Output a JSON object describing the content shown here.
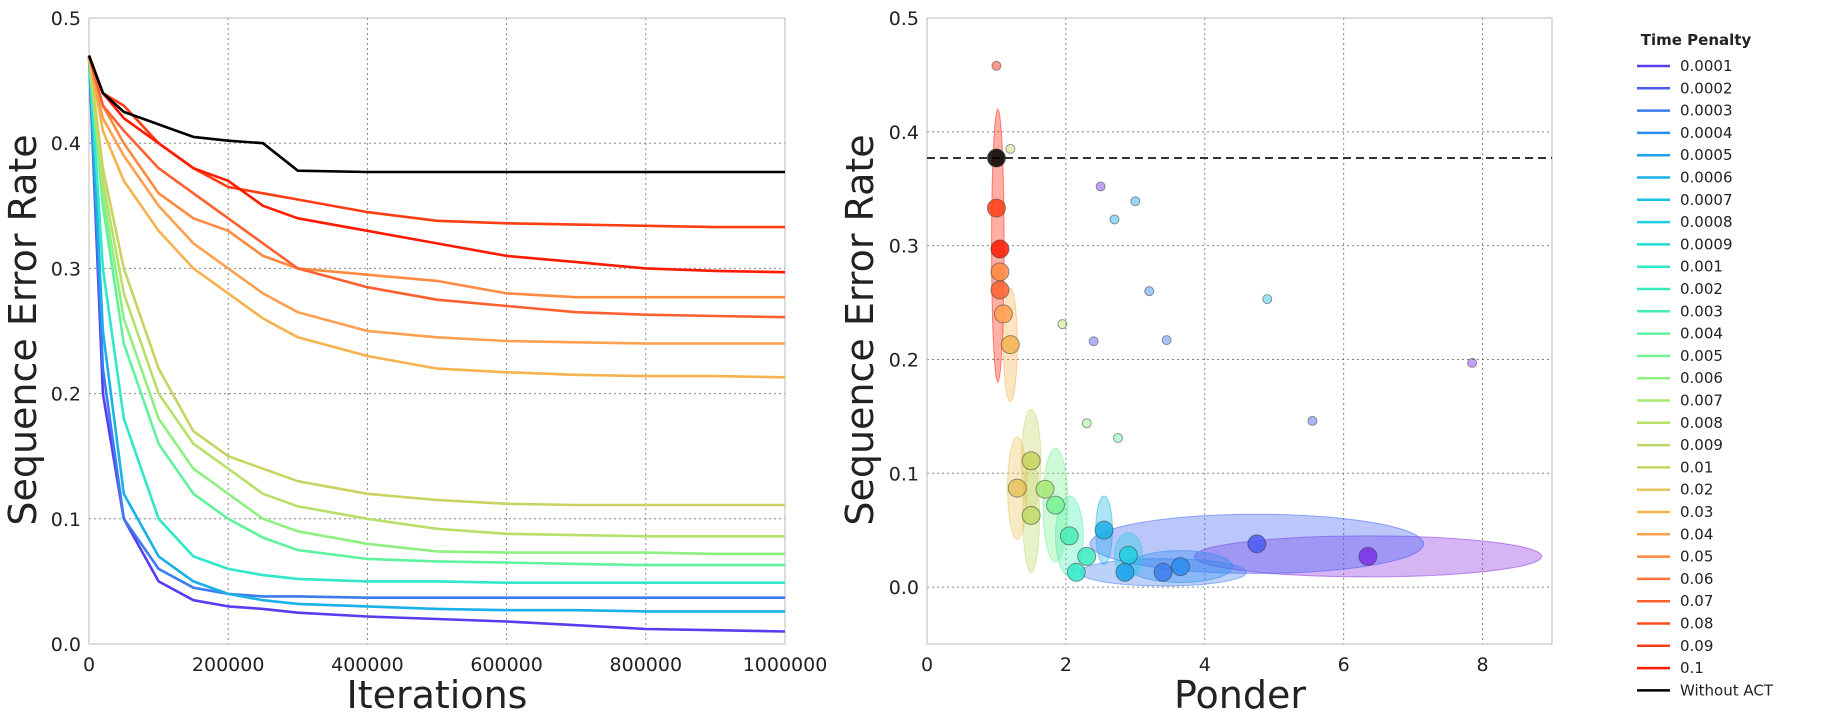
{
  "chart_data": [
    {
      "type": "line",
      "title": "",
      "xlabel": "Iterations",
      "ylabel": "Sequence Error Rate",
      "xlim": [
        0,
        1000000
      ],
      "ylim": [
        0.0,
        0.5
      ],
      "x_ticks": [
        "0",
        "200000",
        "400000",
        "600000",
        "800000",
        "1000000"
      ],
      "y_ticks": [
        "0.0",
        "0.1",
        "0.2",
        "0.3",
        "0.4",
        "0.5"
      ],
      "grid": true,
      "x": [
        0,
        20000,
        50000,
        100000,
        150000,
        200000,
        250000,
        300000,
        400000,
        500000,
        600000,
        700000,
        800000,
        900000,
        1000000
      ],
      "series": [
        {
          "name": "Without ACT",
          "color": "#000000",
          "values": [
            0.47,
            0.44,
            0.425,
            0.415,
            0.405,
            0.402,
            0.4,
            0.378,
            0.377,
            0.377,
            0.377,
            0.377,
            0.377,
            0.377,
            0.377
          ]
        },
        {
          "name": "0.1",
          "color": "#ff1a00",
          "values": [
            0.47,
            0.44,
            0.42,
            0.4,
            0.38,
            0.37,
            0.35,
            0.34,
            0.33,
            0.32,
            0.31,
            0.305,
            0.3,
            0.298,
            0.297
          ]
        },
        {
          "name": "0.09",
          "color": "#ff3d14",
          "values": [
            0.47,
            0.44,
            0.43,
            0.4,
            0.38,
            0.365,
            0.36,
            0.355,
            0.345,
            0.338,
            0.336,
            0.335,
            0.334,
            0.333,
            0.333
          ]
        },
        {
          "name": "0.07",
          "color": "#ff6030",
          "values": [
            0.47,
            0.43,
            0.41,
            0.38,
            0.36,
            0.34,
            0.32,
            0.3,
            0.285,
            0.275,
            0.27,
            0.265,
            0.263,
            0.262,
            0.261
          ]
        },
        {
          "name": "0.05",
          "color": "#ff8a42",
          "values": [
            0.47,
            0.43,
            0.4,
            0.36,
            0.34,
            0.33,
            0.31,
            0.3,
            0.295,
            0.29,
            0.28,
            0.277,
            0.277,
            0.277,
            0.277
          ]
        },
        {
          "name": "0.04",
          "color": "#ffa050",
          "values": [
            0.47,
            0.42,
            0.39,
            0.35,
            0.32,
            0.3,
            0.28,
            0.265,
            0.25,
            0.245,
            0.242,
            0.241,
            0.24,
            0.24,
            0.24
          ]
        },
        {
          "name": "0.03",
          "color": "#f5b24e",
          "values": [
            0.47,
            0.41,
            0.37,
            0.33,
            0.3,
            0.28,
            0.26,
            0.245,
            0.23,
            0.22,
            0.217,
            0.215,
            0.214,
            0.214,
            0.213
          ]
        },
        {
          "name": "0.01",
          "color": "#c9d362",
          "values": [
            0.47,
            0.38,
            0.3,
            0.22,
            0.17,
            0.15,
            0.14,
            0.13,
            0.12,
            0.115,
            0.112,
            0.111,
            0.111,
            0.111,
            0.111
          ]
        },
        {
          "name": "0.008",
          "color": "#b7e06a",
          "values": [
            0.47,
            0.37,
            0.28,
            0.2,
            0.16,
            0.14,
            0.12,
            0.11,
            0.1,
            0.092,
            0.088,
            0.087,
            0.086,
            0.086,
            0.086
          ]
        },
        {
          "name": "0.006",
          "color": "#8ef080",
          "values": [
            0.47,
            0.36,
            0.26,
            0.18,
            0.14,
            0.12,
            0.1,
            0.09,
            0.08,
            0.074,
            0.073,
            0.073,
            0.073,
            0.072,
            0.072
          ]
        },
        {
          "name": "0.004",
          "color": "#5ff3a0",
          "values": [
            0.47,
            0.35,
            0.24,
            0.16,
            0.12,
            0.1,
            0.085,
            0.075,
            0.068,
            0.066,
            0.065,
            0.064,
            0.063,
            0.063,
            0.063
          ]
        },
        {
          "name": "0.001",
          "color": "#2ee8c8",
          "values": [
            0.47,
            0.3,
            0.18,
            0.1,
            0.07,
            0.06,
            0.055,
            0.052,
            0.05,
            0.05,
            0.049,
            0.049,
            0.049,
            0.049,
            0.049
          ]
        },
        {
          "name": "0.0006",
          "color": "#1ab0e8",
          "values": [
            0.47,
            0.25,
            0.12,
            0.07,
            0.05,
            0.04,
            0.035,
            0.032,
            0.03,
            0.028,
            0.027,
            0.027,
            0.026,
            0.026,
            0.026
          ]
        },
        {
          "name": "0.0003",
          "color": "#3b7cf0",
          "values": [
            0.47,
            0.22,
            0.1,
            0.06,
            0.045,
            0.04,
            0.038,
            0.038,
            0.037,
            0.037,
            0.037,
            0.037,
            0.037,
            0.037,
            0.037
          ]
        },
        {
          "name": "0.0001",
          "color": "#5a3cf0",
          "values": [
            0.47,
            0.2,
            0.1,
            0.05,
            0.035,
            0.03,
            0.028,
            0.025,
            0.022,
            0.02,
            0.018,
            0.015,
            0.012,
            0.011,
            0.01
          ]
        }
      ]
    },
    {
      "type": "scatter",
      "title": "",
      "xlabel": "Ponder",
      "ylabel": "Sequence Error Rate",
      "xlim": [
        0,
        9
      ],
      "ylim": [
        -0.05,
        0.5
      ],
      "x_ticks": [
        "0",
        "2",
        "4",
        "6",
        "8"
      ],
      "y_ticks": [
        "0.0",
        "0.1",
        "0.2",
        "0.3",
        "0.4",
        "0.5"
      ],
      "grid": true,
      "reference_line": {
        "y": 0.377,
        "style": "dashed",
        "color": "#333333"
      },
      "points": [
        {
          "group": "Without ACT",
          "x": 1.0,
          "y": 0.377,
          "size": "large",
          "color": "#000000"
        },
        {
          "group": "0.1",
          "x": 1.05,
          "y": 0.297,
          "size": "large",
          "color": "#ff1a00"
        },
        {
          "group": "0.09",
          "x": 1.0,
          "y": 0.333,
          "size": "large",
          "color": "#ff3d14"
        },
        {
          "group": "0.07",
          "x": 1.05,
          "y": 0.261,
          "size": "large",
          "color": "#ff6030"
        },
        {
          "group": "0.05",
          "x": 1.05,
          "y": 0.277,
          "size": "large",
          "color": "#ff8a42"
        },
        {
          "group": "0.04",
          "x": 1.1,
          "y": 0.24,
          "size": "large",
          "color": "#ffa050"
        },
        {
          "group": "0.03",
          "x": 1.2,
          "y": 0.213,
          "size": "large",
          "color": "#f5b24e"
        },
        {
          "group": "0.02",
          "x": 1.3,
          "y": 0.087,
          "size": "large",
          "color": "#e8c25a"
        },
        {
          "group": "0.01",
          "x": 1.5,
          "y": 0.111,
          "size": "large",
          "color": "#c9d362"
        },
        {
          "group": "0.009",
          "x": 1.5,
          "y": 0.063,
          "size": "large",
          "color": "#bdd968"
        },
        {
          "group": "0.007",
          "x": 1.7,
          "y": 0.086,
          "size": "large",
          "color": "#a4e873"
        },
        {
          "group": "0.005",
          "x": 1.85,
          "y": 0.072,
          "size": "large",
          "color": "#74f290"
        },
        {
          "group": "0.003",
          "x": 2.05,
          "y": 0.045,
          "size": "large",
          "color": "#44edb4"
        },
        {
          "group": "0.002",
          "x": 2.3,
          "y": 0.027,
          "size": "large",
          "color": "#36ebc0"
        },
        {
          "group": "0.001",
          "x": 2.15,
          "y": 0.013,
          "size": "large",
          "color": "#2ee8c8"
        },
        {
          "group": "0.0008",
          "x": 2.9,
          "y": 0.028,
          "size": "large",
          "color": "#1ecfe0"
        },
        {
          "group": "0.0006",
          "x": 2.55,
          "y": 0.05,
          "size": "large",
          "color": "#1ab0e8"
        },
        {
          "group": "0.0005",
          "x": 2.85,
          "y": 0.013,
          "size": "large",
          "color": "#1aa2ea"
        },
        {
          "group": "0.0004",
          "x": 3.65,
          "y": 0.018,
          "size": "large",
          "color": "#2a8cee"
        },
        {
          "group": "0.0003",
          "x": 3.4,
          "y": 0.013,
          "size": "large",
          "color": "#3b7cf0"
        },
        {
          "group": "0.0002",
          "x": 4.75,
          "y": 0.038,
          "size": "large",
          "color": "#4a5cf0"
        },
        {
          "group": "0.0001",
          "x": 6.35,
          "y": 0.027,
          "size": "large",
          "color": "#7a30e8"
        },
        {
          "group": "0.0001",
          "x": 7.85,
          "y": 0.197,
          "size": "small",
          "color": "#7a30e8"
        },
        {
          "group": "0.0007",
          "x": 4.9,
          "y": 0.253,
          "size": "small",
          "color": "#1cc0e4"
        },
        {
          "group": "0.0006",
          "x": 2.7,
          "y": 0.323,
          "size": "small",
          "color": "#1ab0e8"
        },
        {
          "group": "0.0005",
          "x": 3.0,
          "y": 0.339,
          "size": "small",
          "color": "#1aa2ea"
        },
        {
          "group": "0.0004",
          "x": 3.2,
          "y": 0.26,
          "size": "small",
          "color": "#2a8cee"
        },
        {
          "group": "0.0003",
          "x": 3.45,
          "y": 0.217,
          "size": "small",
          "color": "#3b7cf0"
        },
        {
          "group": "0.0002",
          "x": 2.4,
          "y": 0.216,
          "size": "small",
          "color": "#4a5cf0"
        },
        {
          "group": "0.0001",
          "x": 2.5,
          "y": 0.352,
          "size": "small",
          "color": "#7a30e8"
        },
        {
          "group": "0.0002",
          "x": 5.55,
          "y": 0.146,
          "size": "small",
          "color": "#4a5cf0"
        },
        {
          "group": "0.004",
          "x": 2.75,
          "y": 0.131,
          "size": "small",
          "color": "#5ff3a0"
        },
        {
          "group": "0.006",
          "x": 2.3,
          "y": 0.144,
          "size": "small",
          "color": "#8ef080"
        },
        {
          "group": "0.008",
          "x": 1.95,
          "y": 0.231,
          "size": "small",
          "color": "#b7e06a"
        },
        {
          "group": "0.009",
          "x": 1.2,
          "y": 0.385,
          "size": "small",
          "color": "#bdd968"
        },
        {
          "group": "0.1",
          "x": 1.0,
          "y": 0.458,
          "size": "small",
          "color": "#ff1a00"
        }
      ],
      "ellipses": [
        {
          "group": "0.0001",
          "cx": 6.35,
          "cy": 0.027,
          "rx": 2.5,
          "ry": 0.018,
          "color": "#8a2be2"
        },
        {
          "group": "0.0002",
          "cx": 4.75,
          "cy": 0.038,
          "rx": 2.4,
          "ry": 0.026,
          "color": "#3b5cf0"
        },
        {
          "group": "0.0003",
          "cx": 3.4,
          "cy": 0.013,
          "rx": 1.2,
          "ry": 0.012,
          "color": "#3b7cf0"
        },
        {
          "group": "0.0004",
          "cx": 3.65,
          "cy": 0.018,
          "rx": 0.75,
          "ry": 0.014,
          "color": "#2a8cee"
        },
        {
          "group": "0.0008",
          "cx": 2.9,
          "cy": 0.028,
          "rx": 0.2,
          "ry": 0.02,
          "color": "#1ecfe0"
        },
        {
          "group": "0.0006",
          "cx": 2.55,
          "cy": 0.05,
          "rx": 0.12,
          "ry": 0.03,
          "color": "#1ab0e8"
        },
        {
          "group": "0.003",
          "cx": 2.05,
          "cy": 0.045,
          "rx": 0.2,
          "ry": 0.035,
          "color": "#44edb4"
        },
        {
          "group": "0.005",
          "cx": 1.85,
          "cy": 0.072,
          "rx": 0.18,
          "ry": 0.05,
          "color": "#74f290"
        },
        {
          "group": "0.009",
          "cx": 1.5,
          "cy": 0.063,
          "rx": 0.12,
          "ry": 0.05,
          "color": "#bdd968"
        },
        {
          "group": "0.01",
          "cx": 1.5,
          "cy": 0.111,
          "rx": 0.14,
          "ry": 0.045,
          "color": "#c9d362"
        },
        {
          "group": "0.02",
          "cx": 1.3,
          "cy": 0.087,
          "rx": 0.14,
          "ry": 0.045,
          "color": "#e8c25a"
        },
        {
          "group": "0.03",
          "cx": 1.2,
          "cy": 0.213,
          "rx": 0.1,
          "ry": 0.05,
          "color": "#f5b24e"
        },
        {
          "group": "0.1",
          "cx": 1.02,
          "cy": 0.3,
          "rx": 0.09,
          "ry": 0.12,
          "color": "#ff1a00"
        }
      ]
    }
  ],
  "legend": {
    "title": "Time Penalty",
    "items": [
      {
        "label": "0.0001",
        "color": "#5a3cf0"
      },
      {
        "label": "0.0002",
        "color": "#4a5cf0"
      },
      {
        "label": "0.0003",
        "color": "#3b7cf0"
      },
      {
        "label": "0.0004",
        "color": "#2a8cee"
      },
      {
        "label": "0.0005",
        "color": "#1aa2ea"
      },
      {
        "label": "0.0006",
        "color": "#1ab0e8"
      },
      {
        "label": "0.0007",
        "color": "#1cc0e4"
      },
      {
        "label": "0.0008",
        "color": "#1ecfe0"
      },
      {
        "label": "0.0009",
        "color": "#24dcd6"
      },
      {
        "label": "0.001",
        "color": "#2ee8c8"
      },
      {
        "label": "0.002",
        "color": "#36ebc0"
      },
      {
        "label": "0.003",
        "color": "#44edb4"
      },
      {
        "label": "0.004",
        "color": "#5ff3a0"
      },
      {
        "label": "0.005",
        "color": "#74f290"
      },
      {
        "label": "0.006",
        "color": "#8ef080"
      },
      {
        "label": "0.007",
        "color": "#a4e873"
      },
      {
        "label": "0.008",
        "color": "#b7e06a"
      },
      {
        "label": "0.009",
        "color": "#bdd968"
      },
      {
        "label": "0.01",
        "color": "#c9d362"
      },
      {
        "label": "0.02",
        "color": "#e8c25a"
      },
      {
        "label": "0.03",
        "color": "#f5b24e"
      },
      {
        "label": "0.04",
        "color": "#ffa050"
      },
      {
        "label": "0.05",
        "color": "#ff8a42"
      },
      {
        "label": "0.06",
        "color": "#ff7538"
      },
      {
        "label": "0.07",
        "color": "#ff6030"
      },
      {
        "label": "0.08",
        "color": "#ff4b20"
      },
      {
        "label": "0.09",
        "color": "#ff3d14"
      },
      {
        "label": "0.1",
        "color": "#ff1a00"
      },
      {
        "label": "Without ACT",
        "color": "#000000"
      }
    ]
  }
}
